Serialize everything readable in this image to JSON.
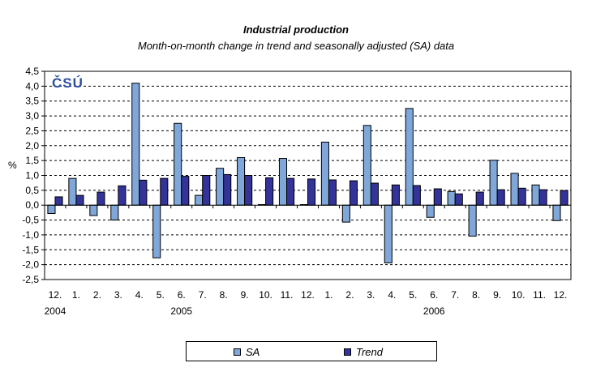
{
  "chart_data": {
    "type": "bar",
    "title": "Industrial production",
    "subtitle": "Month-on-month change in trend and seasonally adjusted (SA) data",
    "ylabel": "%",
    "xlabel": "",
    "ylim": [
      -2.5,
      4.5
    ],
    "ytick_step": 0.5,
    "ytick_labels": [
      "-2,5",
      "-2,0",
      "-1,5",
      "-1,0",
      "-0,5",
      "0,0",
      "0,5",
      "1,0",
      "1,5",
      "2,0",
      "2,5",
      "3,0",
      "3,5",
      "4,0",
      "4,5"
    ],
    "grid": "horizontal-dashed",
    "legend_position": "bottom",
    "categories": [
      "12.",
      "1.",
      "2.",
      "3.",
      "4.",
      "5.",
      "6.",
      "7.",
      "8.",
      "9.",
      "10.",
      "11.",
      "12.",
      "1.",
      "2.",
      "3.",
      "4.",
      "5.",
      "6.",
      "7.",
      "8.",
      "9.",
      "10.",
      "11.",
      "12."
    ],
    "year_labels": [
      {
        "index": 0,
        "label": "2004"
      },
      {
        "index": 6,
        "label": "2005"
      },
      {
        "index": 18,
        "label": "2006"
      }
    ],
    "series": [
      {
        "name": "SA",
        "color": "#7FA7DA",
        "values": [
          -0.28,
          0.9,
          -0.35,
          -0.5,
          4.1,
          -1.77,
          2.75,
          0.33,
          1.24,
          1.6,
          0.02,
          1.57,
          0.02,
          2.12,
          -0.57,
          2.68,
          -1.94,
          3.25,
          -0.41,
          0.46,
          -1.04,
          1.51,
          1.07,
          0.68,
          -0.52
        ]
      },
      {
        "name": "Trend",
        "color": "#333399",
        "values": [
          0.28,
          0.33,
          0.44,
          0.65,
          0.84,
          0.9,
          0.97,
          1.0,
          1.03,
          1.0,
          0.92,
          0.9,
          0.88,
          0.85,
          0.82,
          0.74,
          0.68,
          0.66,
          0.55,
          0.38,
          0.44,
          0.52,
          0.57,
          0.52,
          0.49
        ]
      }
    ],
    "logo": "ČSÚ"
  }
}
